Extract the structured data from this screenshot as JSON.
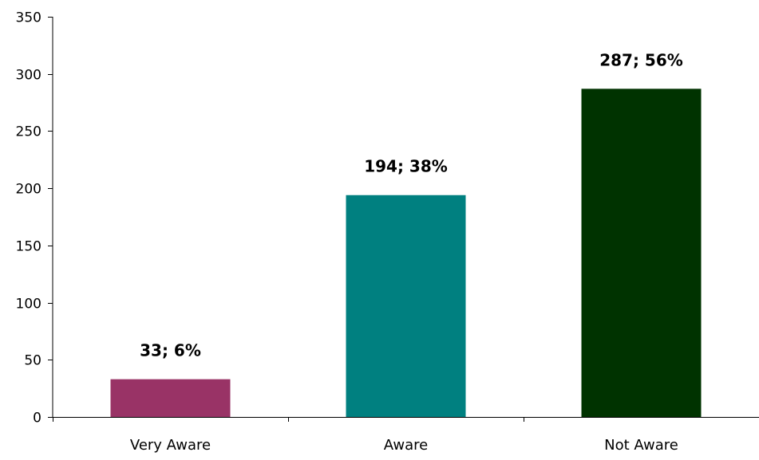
{
  "chart_data": {
    "type": "bar",
    "categories": [
      "Very Aware",
      "Aware",
      "Not Aware"
    ],
    "values": [
      33,
      194,
      287
    ],
    "data_labels": [
      "33; 6%",
      "194; 38%",
      "287; 56%"
    ],
    "title": "",
    "xlabel": "",
    "ylabel": "",
    "ylim": [
      0,
      350
    ],
    "yticks": [
      0,
      50,
      100,
      150,
      200,
      250,
      300,
      350
    ],
    "grid": false,
    "legend": "none",
    "colors": [
      "#993366",
      "#008080",
      "#003300"
    ]
  }
}
